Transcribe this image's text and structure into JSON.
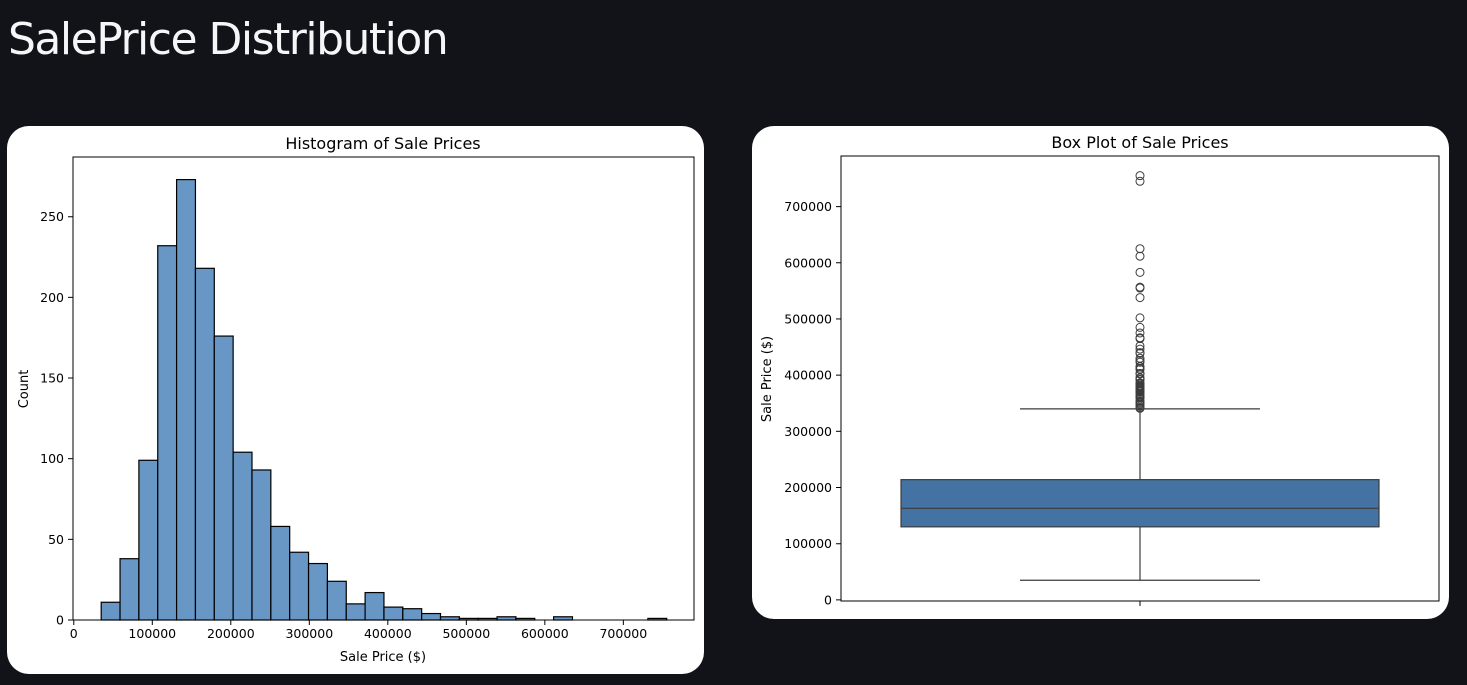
{
  "page": {
    "title": "SalePrice Distribution"
  },
  "chart_data": [
    {
      "type": "bar",
      "subtype": "histogram",
      "title": "Histogram of Sale Prices",
      "xlabel": "Sale Price ($)",
      "ylabel": "Count",
      "xlim": [
        -1000,
        790000
      ],
      "ylim": [
        0,
        287
      ],
      "xticks": [
        0,
        100000,
        200000,
        300000,
        400000,
        500000,
        600000,
        700000
      ],
      "yticks": [
        0,
        50,
        100,
        150,
        200,
        250
      ],
      "bin_start": 34900,
      "bin_width": 24012,
      "values": [
        11,
        38,
        99,
        232,
        273,
        218,
        176,
        104,
        93,
        58,
        42,
        35,
        24,
        10,
        17,
        8,
        7,
        4,
        2,
        1,
        1,
        2,
        1,
        0,
        2,
        0,
        0,
        0,
        0,
        1
      ],
      "bar_color": "#6896c5",
      "edge_color": "#000000",
      "grid": false
    },
    {
      "type": "box",
      "title": "Box Plot of Sale Prices",
      "xlabel": "",
      "ylabel": "Sale Price ($)",
      "ylim": [
        -2000,
        790000
      ],
      "yticks": [
        0,
        100000,
        200000,
        300000,
        400000,
        500000,
        600000,
        700000
      ],
      "whisker_low": 34900,
      "q1": 129975,
      "median": 163000,
      "q3": 214000,
      "whisker_high": 340000,
      "outliers": [
        745000,
        755000,
        625000,
        611657,
        582933,
        556581,
        555000,
        538000,
        501837,
        485000,
        475000,
        466500,
        465000,
        451950,
        446261,
        440000,
        438780,
        430000,
        426000,
        423000,
        415298,
        412500,
        410000,
        403000,
        402861,
        402000,
        395192,
        395000,
        392500,
        392000,
        386250,
        385000,
        384500,
        383970,
        381000,
        380000,
        378500,
        377500,
        377426,
        376162,
        375000,
        374000,
        372500,
        372402,
        370878,
        369900,
        367294,
        365000,
        361919,
        360000,
        359100,
        354000,
        352000,
        350000,
        348000,
        345000,
        342643,
        341000
      ],
      "box_color": "#4472a2",
      "grid": false
    }
  ]
}
